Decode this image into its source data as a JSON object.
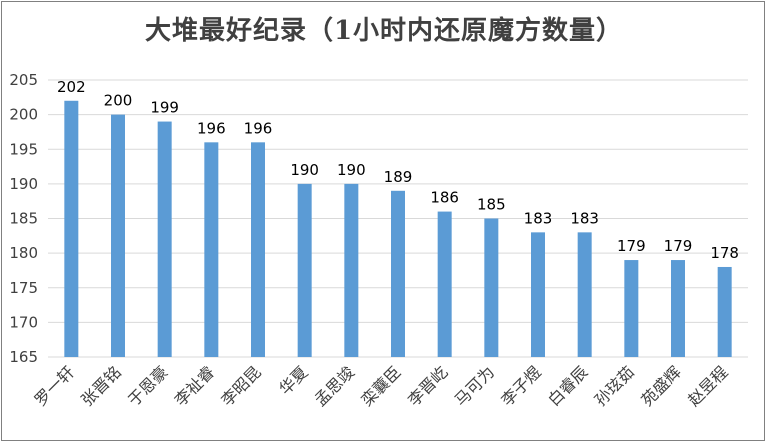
{
  "chart_data": {
    "type": "bar",
    "title": "大堆最好纪录（1小时内还原魔方数量）",
    "categories": [
      "罗一轩",
      "张晋铭",
      "于恩豪",
      "李祉睿",
      "李昭昆",
      "华夏",
      "孟思竣",
      "栾蘘臣",
      "李晋屹",
      "马可为",
      "李子煜",
      "白睿辰",
      "孙玹茹",
      "苑盛辉",
      "赵昱程"
    ],
    "values": [
      202,
      200,
      199,
      196,
      196,
      190,
      190,
      189,
      186,
      185,
      183,
      183,
      179,
      179,
      178
    ],
    "ylim": [
      165,
      205
    ],
    "yticks": [
      165,
      170,
      175,
      180,
      185,
      190,
      195,
      200,
      205
    ],
    "grid": true,
    "bar_color": "#5b9bd5",
    "grid_color": "#d9d9d9"
  }
}
